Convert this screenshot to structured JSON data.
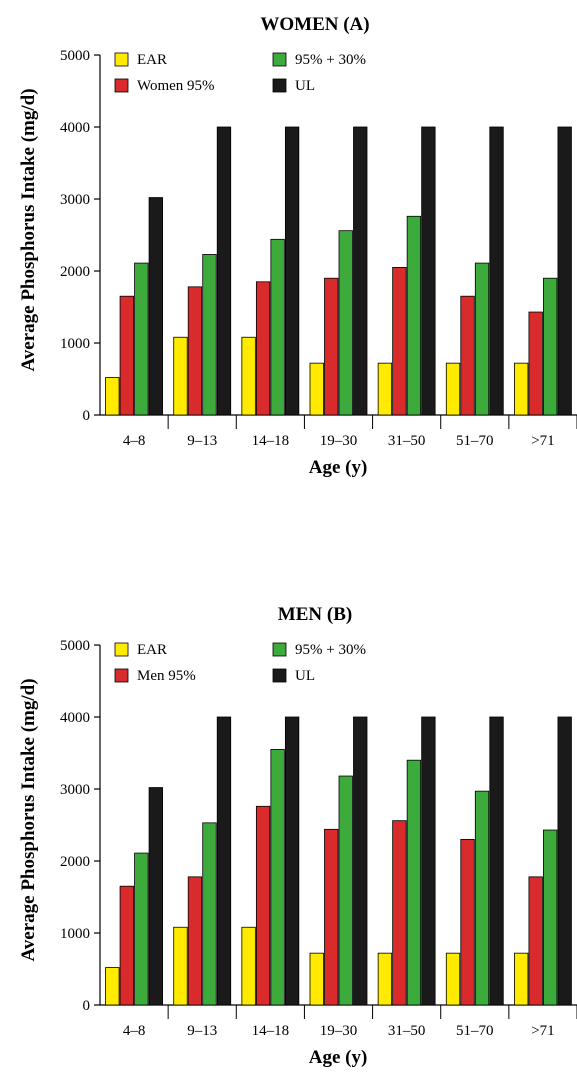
{
  "chart_data": [
    {
      "type": "bar",
      "title": "WOMEN (A)",
      "xlabel": "Age (y)",
      "ylabel": "Average Phosphorus Intake (mg/d)",
      "ylim": [
        0,
        5000
      ],
      "yticks": [
        "0",
        "1000",
        "2000",
        "3000",
        "4000",
        "5000"
      ],
      "categories": [
        "4–8",
        "9–13",
        "14–18",
        "19–30",
        "31–50",
        "51–70",
        ">71"
      ],
      "legend_position": "top-left",
      "series": [
        {
          "name": "EAR",
          "color": "#ffea00",
          "values": [
            520,
            1080,
            1080,
            720,
            720,
            720,
            720
          ]
        },
        {
          "name": "Women 95%",
          "color": "#d92b2b",
          "values": [
            1650,
            1780,
            1850,
            1900,
            2050,
            1650,
            1430
          ]
        },
        {
          "name": "95% + 30%",
          "color": "#3cab3c",
          "values": [
            2110,
            2230,
            2440,
            2560,
            2760,
            2110,
            1900
          ]
        },
        {
          "name": "UL",
          "color": "#1a1a1a",
          "values": [
            3020,
            4000,
            4000,
            4000,
            4000,
            4000,
            4000
          ]
        }
      ]
    },
    {
      "type": "bar",
      "title": "MEN (B)",
      "xlabel": "Age (y)",
      "ylabel": "Average Phosphorus Intake (mg/d)",
      "ylim": [
        0,
        5000
      ],
      "yticks": [
        "0",
        "1000",
        "2000",
        "3000",
        "4000",
        "5000"
      ],
      "categories": [
        "4–8",
        "9–13",
        "14–18",
        "19–30",
        "31–50",
        "51–70",
        ">71"
      ],
      "legend_position": "top-left",
      "series": [
        {
          "name": "EAR",
          "color": "#ffea00",
          "values": [
            520,
            1080,
            1080,
            720,
            720,
            720,
            720
          ]
        },
        {
          "name": "Men 95%",
          "color": "#d92b2b",
          "values": [
            1650,
            1780,
            2760,
            2440,
            2560,
            2300,
            1780
          ]
        },
        {
          "name": "95% + 30%",
          "color": "#3cab3c",
          "values": [
            2110,
            2530,
            3550,
            3180,
            3400,
            2970,
            2430
          ]
        },
        {
          "name": "UL",
          "color": "#1a1a1a",
          "values": [
            3020,
            4000,
            4000,
            4000,
            4000,
            4000,
            4000
          ]
        }
      ]
    }
  ]
}
